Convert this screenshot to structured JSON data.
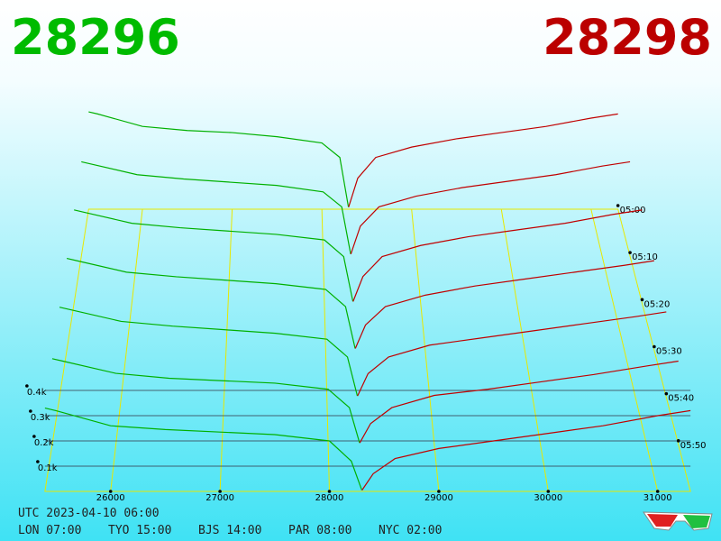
{
  "chart_data": {
    "type": "depth3d",
    "best_bid": 28296,
    "best_ask": 28298,
    "bid_color": "#00b000",
    "ask_color": "#c00000",
    "xlim": [
      25400,
      31300
    ],
    "xticks": [
      26000,
      27000,
      28000,
      29000,
      30000,
      31000
    ],
    "ylim": [
      0,
      500
    ],
    "yticks": [
      {
        "value": 100,
        "label": "0.1k"
      },
      {
        "value": 200,
        "label": "0.2k"
      },
      {
        "value": 300,
        "label": "0.3k"
      },
      {
        "value": 400,
        "label": "0.4k"
      }
    ],
    "tlim": [
      0,
      60
    ],
    "tticks": [
      {
        "value": 0,
        "label": "05:00"
      },
      {
        "value": 10,
        "label": "05:10"
      },
      {
        "value": 20,
        "label": "05:20"
      },
      {
        "value": 30,
        "label": "05:30"
      },
      {
        "value": 40,
        "label": "05:40"
      },
      {
        "value": 50,
        "label": "05:50"
      }
    ],
    "bid_prices": [
      25400,
      25500,
      26000,
      26500,
      27000,
      27500,
      28000,
      28200,
      28296
    ],
    "ask_prices": [
      28298,
      28400,
      28600,
      29000,
      29500,
      30000,
      30500,
      31000,
      31300
    ],
    "snapshots": [
      {
        "t": 0,
        "bid": [
          470,
          460,
          400,
          380,
          370,
          350,
          320,
          250,
          10
        ],
        "ask": [
          10,
          150,
          250,
          300,
          340,
          370,
          400,
          440,
          460
        ]
      },
      {
        "t": 10,
        "bid": [
          440,
          430,
          380,
          360,
          345,
          330,
          300,
          230,
          10
        ],
        "ask": [
          10,
          140,
          230,
          280,
          320,
          350,
          380,
          420,
          440
        ]
      },
      {
        "t": 20,
        "bid": [
          420,
          410,
          360,
          340,
          325,
          310,
          285,
          210,
          8
        ],
        "ask": [
          8,
          120,
          210,
          260,
          300,
          330,
          360,
          400,
          420
        ]
      },
      {
        "t": 30,
        "bid": [
          400,
          390,
          340,
          320,
          305,
          290,
          265,
          190,
          8
        ],
        "ask": [
          8,
          110,
          190,
          240,
          280,
          310,
          340,
          370,
          390
        ]
      },
      {
        "t": 40,
        "bid": [
          380,
          370,
          320,
          300,
          285,
          270,
          245,
          170,
          6
        ],
        "ask": [
          6,
          100,
          170,
          220,
          250,
          280,
          310,
          340,
          360
        ]
      },
      {
        "t": 50,
        "bid": [
          350,
          340,
          290,
          270,
          260,
          250,
          225,
          150,
          6
        ],
        "ask": [
          6,
          85,
          150,
          200,
          225,
          255,
          285,
          320,
          340
        ]
      },
      {
        "t": 60,
        "bid": [
          330,
          320,
          260,
          245,
          235,
          225,
          200,
          120,
          5
        ],
        "ask": [
          5,
          70,
          130,
          170,
          200,
          230,
          260,
          300,
          320
        ]
      }
    ]
  },
  "footer": {
    "utc": "UTC 2023-04-10 06:00",
    "zones": [
      "LON 07:00",
      "TYO 15:00",
      "BJS 14:00",
      "PAR 08:00",
      "NYC 02:00"
    ]
  }
}
